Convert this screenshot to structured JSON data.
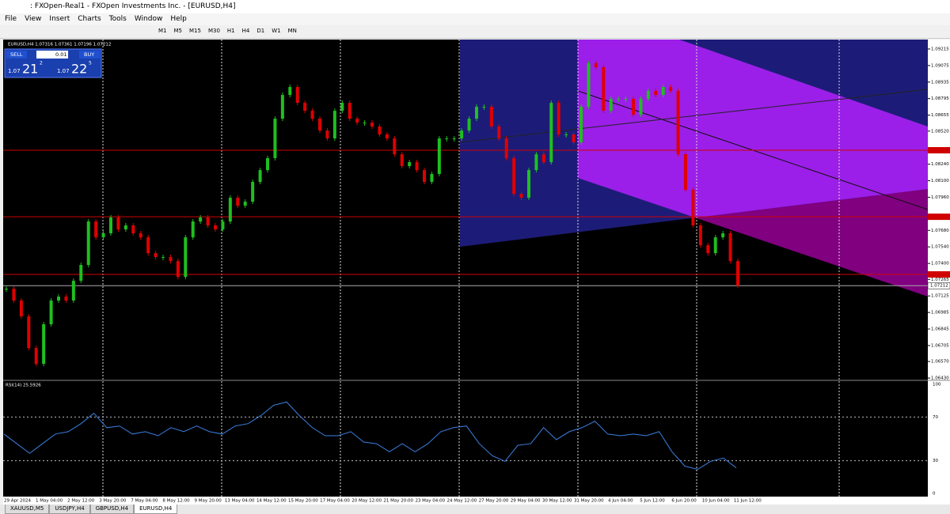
{
  "window": {
    "title": ": FXOpen-Real1 - FXOpen Investments Inc. - [EURUSD,H4]",
    "menu": [
      "File",
      "View",
      "Insert",
      "Charts",
      "Tools",
      "Window",
      "Help"
    ],
    "timeframes": [
      "M1",
      "M5",
      "M15",
      "M30",
      "H1",
      "H4",
      "D1",
      "W1",
      "MN"
    ]
  },
  "chart": {
    "header": "EURUSD,H4 1.07316 1.07361 1.07196 1.07212",
    "trade": {
      "sell": "SELL",
      "lot": "0.01",
      "buy": "BUY",
      "bid_big": "1.07",
      "bid_pips": "21",
      "bid_frac": "2",
      "ask_big": "1.07",
      "ask_pips": "22",
      "ask_frac": "5"
    },
    "price": {
      "ylim": [
        1.06417,
        1.09295
      ],
      "yticks": [
        1.09215,
        1.09075,
        1.08935,
        1.08795,
        1.08655,
        {
          "value": 1.0852,
          "label": "1.08520"
        },
        {
          "value": 1.0824,
          "label": "1.08240"
        },
        {
          "value": 1.081,
          "label": "1.08100"
        },
        {
          "value": 1.0796,
          "label": "1.07960"
        },
        {
          "value": 1.0768,
          "label": "1.07680"
        },
        {
          "value": 1.0754,
          "label": "1.07540"
        },
        {
          "value": 1.074,
          "label": "1.07400"
        },
        1.07265,
        1.07125,
        1.06985,
        1.06845,
        1.06705,
        {
          "value": 1.0657,
          "label": "1.06570"
        },
        {
          "value": 1.0643,
          "label": "1.06430"
        }
      ],
      "closes": [
        1.07186,
        1.07086,
        1.06952,
        1.06684,
        1.0655,
        1.06885,
        1.07086,
        1.07119,
        1.07086,
        1.07253,
        1.07387,
        1.07755,
        1.07621,
        1.07655,
        1.07789,
        1.07688,
        1.07722,
        1.07655,
        1.07621,
        1.07487,
        1.07454,
        1.07454,
        1.0742,
        1.07286,
        1.07621,
        1.07755,
        1.07789,
        1.07722,
        1.07688,
        1.07755,
        1.07956,
        1.07889,
        1.07923,
        1.0809,
        1.0819,
        1.08291,
        1.08625,
        1.08826,
        1.08893,
        1.08759,
        1.08692,
        1.08625,
        1.08525,
        1.08458,
        1.08692,
        1.08759,
        1.08625,
        1.08592,
        1.08592,
        1.08559,
        1.08492,
        1.08458,
        1.08324,
        1.08224,
        1.08257,
        1.0819,
        1.0809,
        1.08157,
        1.08458,
        1.08458,
        1.08458,
        1.08525,
        1.08625,
        1.08726,
        1.08726,
        1.08559,
        1.08458,
        1.08291,
        1.07989,
        1.07956,
        1.0819,
        1.08324,
        1.08257,
        1.08759,
        1.08492,
        1.08492,
        1.08425,
        1.08726,
        1.09094,
        1.09061,
        1.08692,
        1.08793,
        1.08793,
        1.08793,
        1.08659,
        1.08793,
        1.0886,
        1.08826,
        1.08893,
        1.0886,
        1.08324,
        1.08023,
        1.07722,
        1.07554,
        1.07487,
        1.07621,
        1.07655,
        1.0742,
        1.07212
      ],
      "hlines": [
        1.08358,
        1.07795,
        1.07307
      ],
      "current": 1.07212
    },
    "xlabels": [
      "29 Apr 2024",
      "1 May 04:00",
      "2 May 12:00",
      "3 May 20:00",
      "7 May 04:00",
      "8 May 12:00",
      "9 May 20:00",
      "13 May 04:00",
      "14 May 12:00",
      "15 May 20:00",
      "17 May 04:00",
      "20 May 12:00",
      "21 May 20:00",
      "23 May 04:00",
      "24 May 12:00",
      "27 May 20:00",
      "29 May 04:00",
      "30 May 12:00",
      "31 May 20:00",
      "4 Jun 04:00",
      "5 Jun 12:00",
      "6 Jun 20:00",
      "10 Jun 04:00",
      "11 Jun 12:00"
    ],
    "rsi": {
      "label": "RSI(14) 25.5926",
      "ylim": [
        0,
        100
      ],
      "yticks": [
        100,
        70,
        30,
        0
      ],
      "values": [
        54.4,
        45.6,
        36.8,
        45.6,
        54.4,
        56.6,
        64.0,
        73.5,
        60.3,
        61.8,
        54.4,
        56.6,
        52.9,
        60.3,
        56.6,
        61.8,
        56.6,
        54.4,
        61.8,
        64.0,
        71.3,
        80.9,
        83.8,
        71.3,
        60.3,
        52.9,
        52.9,
        56.6,
        47.1,
        45.6,
        38.2,
        45.6,
        38.2,
        45.6,
        56.6,
        60.3,
        61.8,
        45.6,
        34.6,
        29.4,
        44.1,
        45.6,
        60.3,
        49.3,
        56.6,
        60.3,
        66.2,
        54.4,
        52.9,
        54.4,
        52.9,
        56.6,
        38.2,
        25.0,
        22.1,
        29.4,
        32.4,
        23.5
      ]
    },
    "tabs": [
      "XAUUSD,M5",
      "USDJPY,H4",
      "GBPUSD,H4",
      "EURUSD,H4"
    ]
  }
}
